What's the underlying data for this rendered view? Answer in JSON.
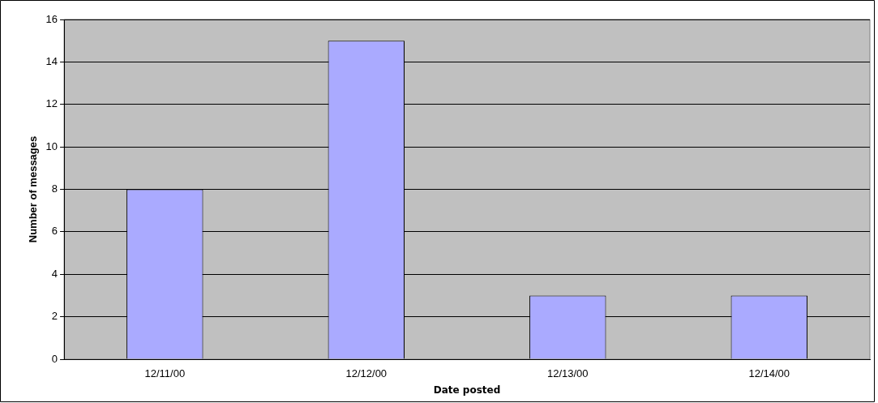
{
  "chart_data": {
    "type": "bar",
    "xlabel": "Date posted",
    "ylabel": "Number of messages",
    "categories": [
      "12/11/00",
      "12/12/00",
      "12/13/00",
      "12/14/00"
    ],
    "values": [
      8,
      15,
      3,
      3
    ],
    "color": "#aaaaff",
    "ylim": [
      0,
      16
    ],
    "yticks": [
      0,
      2,
      4,
      6,
      8,
      10,
      12,
      14,
      16
    ],
    "grid": "y",
    "legend": false
  }
}
